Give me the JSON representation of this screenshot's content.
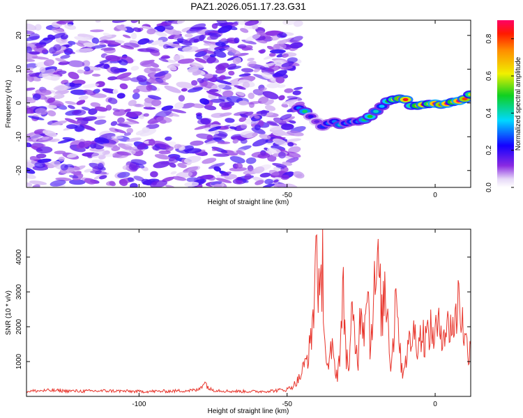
{
  "title": "PAZ1.2026.051.17.23.G31",
  "chart_data": [
    {
      "type": "heatmap",
      "name": "spectrogram",
      "xlabel": "Height of straight line (km)",
      "ylabel": "Frequency (Hz)",
      "xlim": [
        -138,
        12
      ],
      "ylim": [
        -25,
        24.5
      ],
      "xticks": [
        -100,
        -50,
        0
      ],
      "yticks": [
        -20,
        -10,
        0,
        10,
        20
      ],
      "noise_region": {
        "x_range": [
          -138,
          -46
        ],
        "y_range": [
          -25,
          24.5
        ],
        "level_range": [
          0.03,
          0.2
        ]
      },
      "signal_track": {
        "x": [
          -46,
          -44,
          -42,
          -40,
          -38,
          -36,
          -34,
          -32,
          -30,
          -28,
          -26,
          -24,
          -22,
          -20,
          -18,
          -16,
          -14,
          -12,
          -10,
          -8,
          -6,
          -4,
          -2,
          0,
          2,
          4,
          6,
          8,
          10,
          12
        ],
        "freq": [
          -1.5,
          -2.5,
          -4,
          -5.5,
          -7,
          -6,
          -5.5,
          -6.5,
          -6,
          -5.5,
          -5.5,
          -5,
          -4,
          -2.5,
          -1,
          0.5,
          1,
          1.3,
          1.0,
          -0.8,
          -0.8,
          -0.5,
          -0.3,
          -0.2,
          -0.5,
          -0.2,
          0.3,
          0.6,
          1.2,
          2.5
        ],
        "amplitude": [
          0.3,
          0.45,
          0.2,
          0.15,
          0.25,
          0.3,
          0.3,
          0.4,
          0.3,
          0.35,
          0.3,
          0.45,
          0.5,
          0.4,
          0.35,
          0.5,
          0.6,
          0.75,
          0.85,
          0.55,
          0.7,
          0.85,
          0.65,
          0.95,
          0.8,
          0.92,
          0.7,
          0.95,
          0.8,
          0.6
        ]
      },
      "colorbar": {
        "label": "Normalized spectral amplitude",
        "range": [
          0,
          0.9
        ],
        "ticks": [
          "0.0",
          "0.2",
          "0.4",
          "0.6",
          "0.8"
        ],
        "tick_values": [
          0,
          0.2,
          0.4,
          0.6,
          0.8
        ]
      }
    },
    {
      "type": "line",
      "name": "snr",
      "xlabel": "Height of straight line (km)",
      "ylabel": "SNR (10 * v/v)",
      "xlim": [
        -138,
        12
      ],
      "ylim": [
        0,
        4800
      ],
      "xticks": [
        -100,
        -50,
        0
      ],
      "yticks": [
        1000,
        2000,
        3000,
        4000
      ],
      "color": "#e8332a",
      "series": [
        {
          "name": "SNR",
          "x": [
            -138,
            -130,
            -120,
            -110,
            -100,
            -90,
            -80,
            -78,
            -76,
            -70,
            -60,
            -55,
            -50,
            -48,
            -46,
            -44,
            -42,
            -41,
            -40,
            -39,
            -38,
            -37,
            -36,
            -35,
            -34,
            -33,
            -32,
            -31,
            -30,
            -29,
            -28,
            -27,
            -26,
            -25,
            -24,
            -23,
            -22,
            -21,
            -20,
            -19,
            -18,
            -17,
            -16,
            -15,
            -14,
            -13,
            -12,
            -11,
            -10,
            -9,
            -8,
            -7,
            -6,
            -5,
            -4,
            -3,
            -2,
            -1,
            0,
            1,
            2,
            3,
            4,
            5,
            6,
            7,
            8,
            9,
            10,
            11,
            12
          ],
          "y": [
            150,
            170,
            150,
            160,
            140,
            150,
            180,
            420,
            200,
            150,
            140,
            160,
            200,
            300,
            500,
            900,
            1500,
            2600,
            4750,
            2200,
            3900,
            1200,
            700,
            1400,
            900,
            600,
            1500,
            2900,
            1200,
            800,
            2400,
            1500,
            1100,
            3000,
            1800,
            3900,
            1400,
            2700,
            3300,
            3600,
            2200,
            3100,
            2400,
            900,
            1700,
            3600,
            1300,
            700,
            1100,
            1400,
            1700,
            1800,
            1600,
            1700,
            1750,
            1650,
            1900,
            1800,
            1850,
            1900,
            2000,
            1950,
            1900,
            2100,
            2000,
            2150,
            3100,
            2200,
            1700,
            1300,
            1500
          ]
        }
      ]
    }
  ]
}
